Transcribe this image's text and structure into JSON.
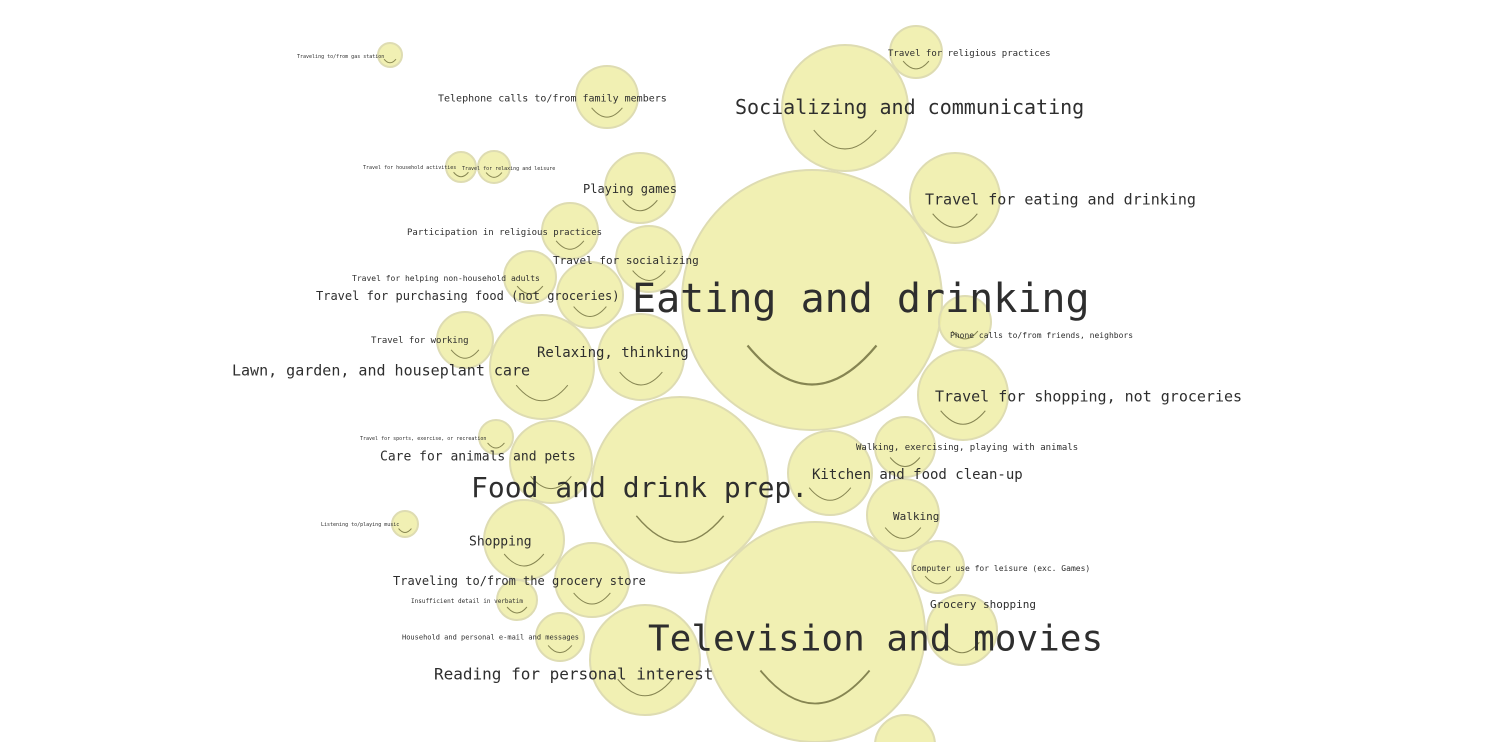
{
  "chart_data": {
    "type": "bubble",
    "marker": "smiley-face",
    "colors": {
      "bubble_fill": "#efeda6",
      "bubble_stroke": "#dedcb2",
      "smile": "#6b6a3a",
      "label": "#2e2e2e"
    },
    "items": [
      {
        "label": "Eating and drinking"
      },
      {
        "label": "Television and movies"
      },
      {
        "label": "Food and drink prep."
      },
      {
        "label": "Socializing and communicating"
      },
      {
        "label": "Travel for eating and drinking"
      },
      {
        "label": "Travel for shopping, not groceries"
      },
      {
        "label": "Travel for religious practices"
      },
      {
        "label": "Phone calls to/from friends, neighbors"
      },
      {
        "label": "Walking, exercising, playing with animals"
      },
      {
        "label": "Kitchen and food clean-up"
      },
      {
        "label": "Walking"
      },
      {
        "label": "Computer use for leisure (exc. Games)"
      },
      {
        "label": "Grocery shopping"
      },
      {
        "label": "Reading for personal interest"
      },
      {
        "label": "Telephone calls to/from family members"
      },
      {
        "label": "Traveling to/from gas station"
      },
      {
        "label": "Travel for household activities"
      },
      {
        "label": "Travel for relaxing and leisure"
      },
      {
        "label": "Playing games"
      },
      {
        "label": "Participation in religious practices"
      },
      {
        "label": "Travel for socializing"
      },
      {
        "label": "Travel for helping non-household adults"
      },
      {
        "label": "Travel for purchasing food (not groceries)"
      },
      {
        "label": "Travel for working"
      },
      {
        "label": "Lawn, garden, and houseplant care"
      },
      {
        "label": "Relaxing, thinking"
      },
      {
        "label": "Travel for sports, exercise, or recreation"
      },
      {
        "label": "Care for animals and pets"
      },
      {
        "label": "Listening to/playing music"
      },
      {
        "label": "Shopping"
      },
      {
        "label": "Traveling to/from the grocery store"
      },
      {
        "label": "Insufficient detail in verbatim"
      },
      {
        "label": "Household and personal e-mail and messages"
      },
      {
        "label": ""
      }
    ]
  }
}
